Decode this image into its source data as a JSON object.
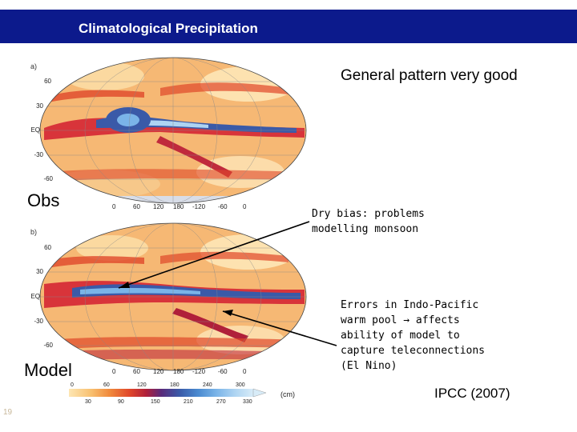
{
  "header": {
    "title": "Climatological Precipitation"
  },
  "panels": {
    "top": {
      "letter": "a)",
      "label": "Obs",
      "lat_labels": [
        "60",
        "30",
        "EQ",
        "-30",
        "-60"
      ],
      "lon_labels": [
        "0",
        "60",
        "120",
        "180",
        "-120",
        "-60",
        "0"
      ]
    },
    "bottom": {
      "letter": "b)",
      "label": "Model",
      "lat_labels": [
        "60",
        "30",
        "EQ",
        "-30",
        "-60"
      ],
      "lon_labels": [
        "0",
        "60",
        "120",
        "180",
        "-120",
        "-60",
        "0"
      ]
    }
  },
  "colorbar": {
    "upper_ticks": [
      "0",
      "60",
      "120",
      "180",
      "240",
      "300"
    ],
    "lower_ticks": [
      "30",
      "90",
      "150",
      "210",
      "270",
      "330"
    ],
    "unit": "(cm)",
    "colors": [
      "#fde6b3",
      "#f8c070",
      "#f08a3c",
      "#e0472a",
      "#b0203a",
      "#5a2a7a",
      "#3a5aa8",
      "#4a8ad0",
      "#7ab4e8",
      "#aed4f2",
      "#d8ecf8"
    ]
  },
  "annotations": {
    "heading": "General pattern very good",
    "dry_bias": [
      "Dry bias: problems",
      "modelling monsoon"
    ],
    "errors": [
      "Errors in Indo-Pacific",
      "warm pool → affects",
      "ability of model to",
      "capture teleconnections",
      "(El Nino)"
    ],
    "citation": "IPCC (2007)"
  },
  "page_number": "19"
}
